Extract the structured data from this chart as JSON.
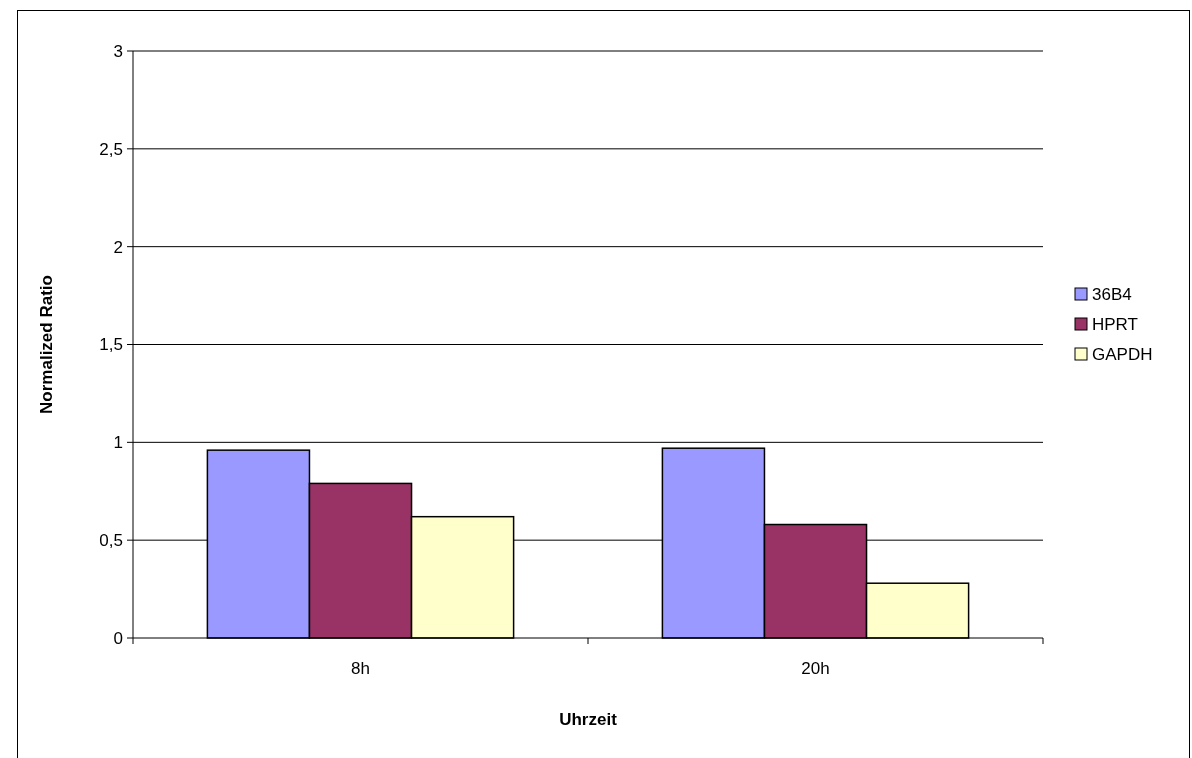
{
  "chart_data": {
    "type": "bar",
    "xlabel": "Uhrzeit",
    "ylabel": "Normalized Ratio",
    "categories": [
      "8h",
      "20h"
    ],
    "series": [
      {
        "name": "36B4",
        "color": "#9999ff",
        "values": [
          0.96,
          0.97
        ]
      },
      {
        "name": "HPRT",
        "color": "#993366",
        "values": [
          0.79,
          0.58
        ]
      },
      {
        "name": "GAPDH",
        "color": "#ffffcc",
        "values": [
          0.62,
          0.28
        ]
      }
    ],
    "ylim": [
      0,
      3
    ],
    "yticks": [
      0,
      {
        "value": 0.5,
        "label": "0,5"
      },
      1,
      {
        "value": 1.5,
        "label": "1,5"
      },
      2,
      {
        "value": 2.5,
        "label": "2,5"
      },
      3
    ],
    "grid": "y",
    "legend": "right"
  }
}
